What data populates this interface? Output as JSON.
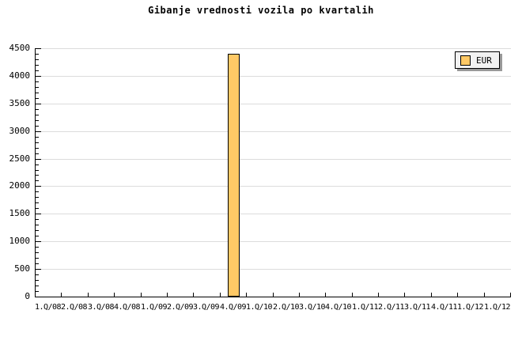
{
  "chart_data": {
    "type": "bar",
    "title": "Gibanje vrednosti vozila po kvartalih",
    "categories": [
      "1.Q/08",
      "2.Q/08",
      "3.Q/08",
      "4.Q/08",
      "1.Q/09",
      "2.Q/09",
      "3.Q/09",
      "4.Q/09",
      "1.Q/10",
      "2.Q/10",
      "3.Q/10",
      "4.Q/10",
      "1.Q/11",
      "2.Q/11",
      "3.Q/11",
      "4.Q/11",
      "1.Q/12",
      "1.Q/12"
    ],
    "series": [
      {
        "name": "EUR",
        "values": [
          null,
          null,
          null,
          null,
          null,
          null,
          null,
          4400,
          null,
          null,
          null,
          null,
          null,
          null,
          null,
          null,
          null,
          null
        ]
      }
    ],
    "xlabel": "",
    "ylabel": "",
    "ylim": [
      0,
      4500
    ],
    "ytick_step": 500,
    "y_minor_step": 100,
    "ytick_labels": [
      "0",
      "500",
      "1000",
      "1500",
      "2000",
      "2500",
      "3000",
      "3500",
      "4000",
      "4500"
    ],
    "grid": "horizontal-major",
    "legend_position": "top-right",
    "colors": {
      "bar_fill": "#FFC966",
      "bar_border": "#000000",
      "gridline": "#DCDCDC",
      "axis": "#000000",
      "text": "#000000",
      "background": "#FFFFFF",
      "legend_bg": "#F2F2F2",
      "legend_border": "#000000",
      "legend_shadow": "#999999"
    }
  }
}
